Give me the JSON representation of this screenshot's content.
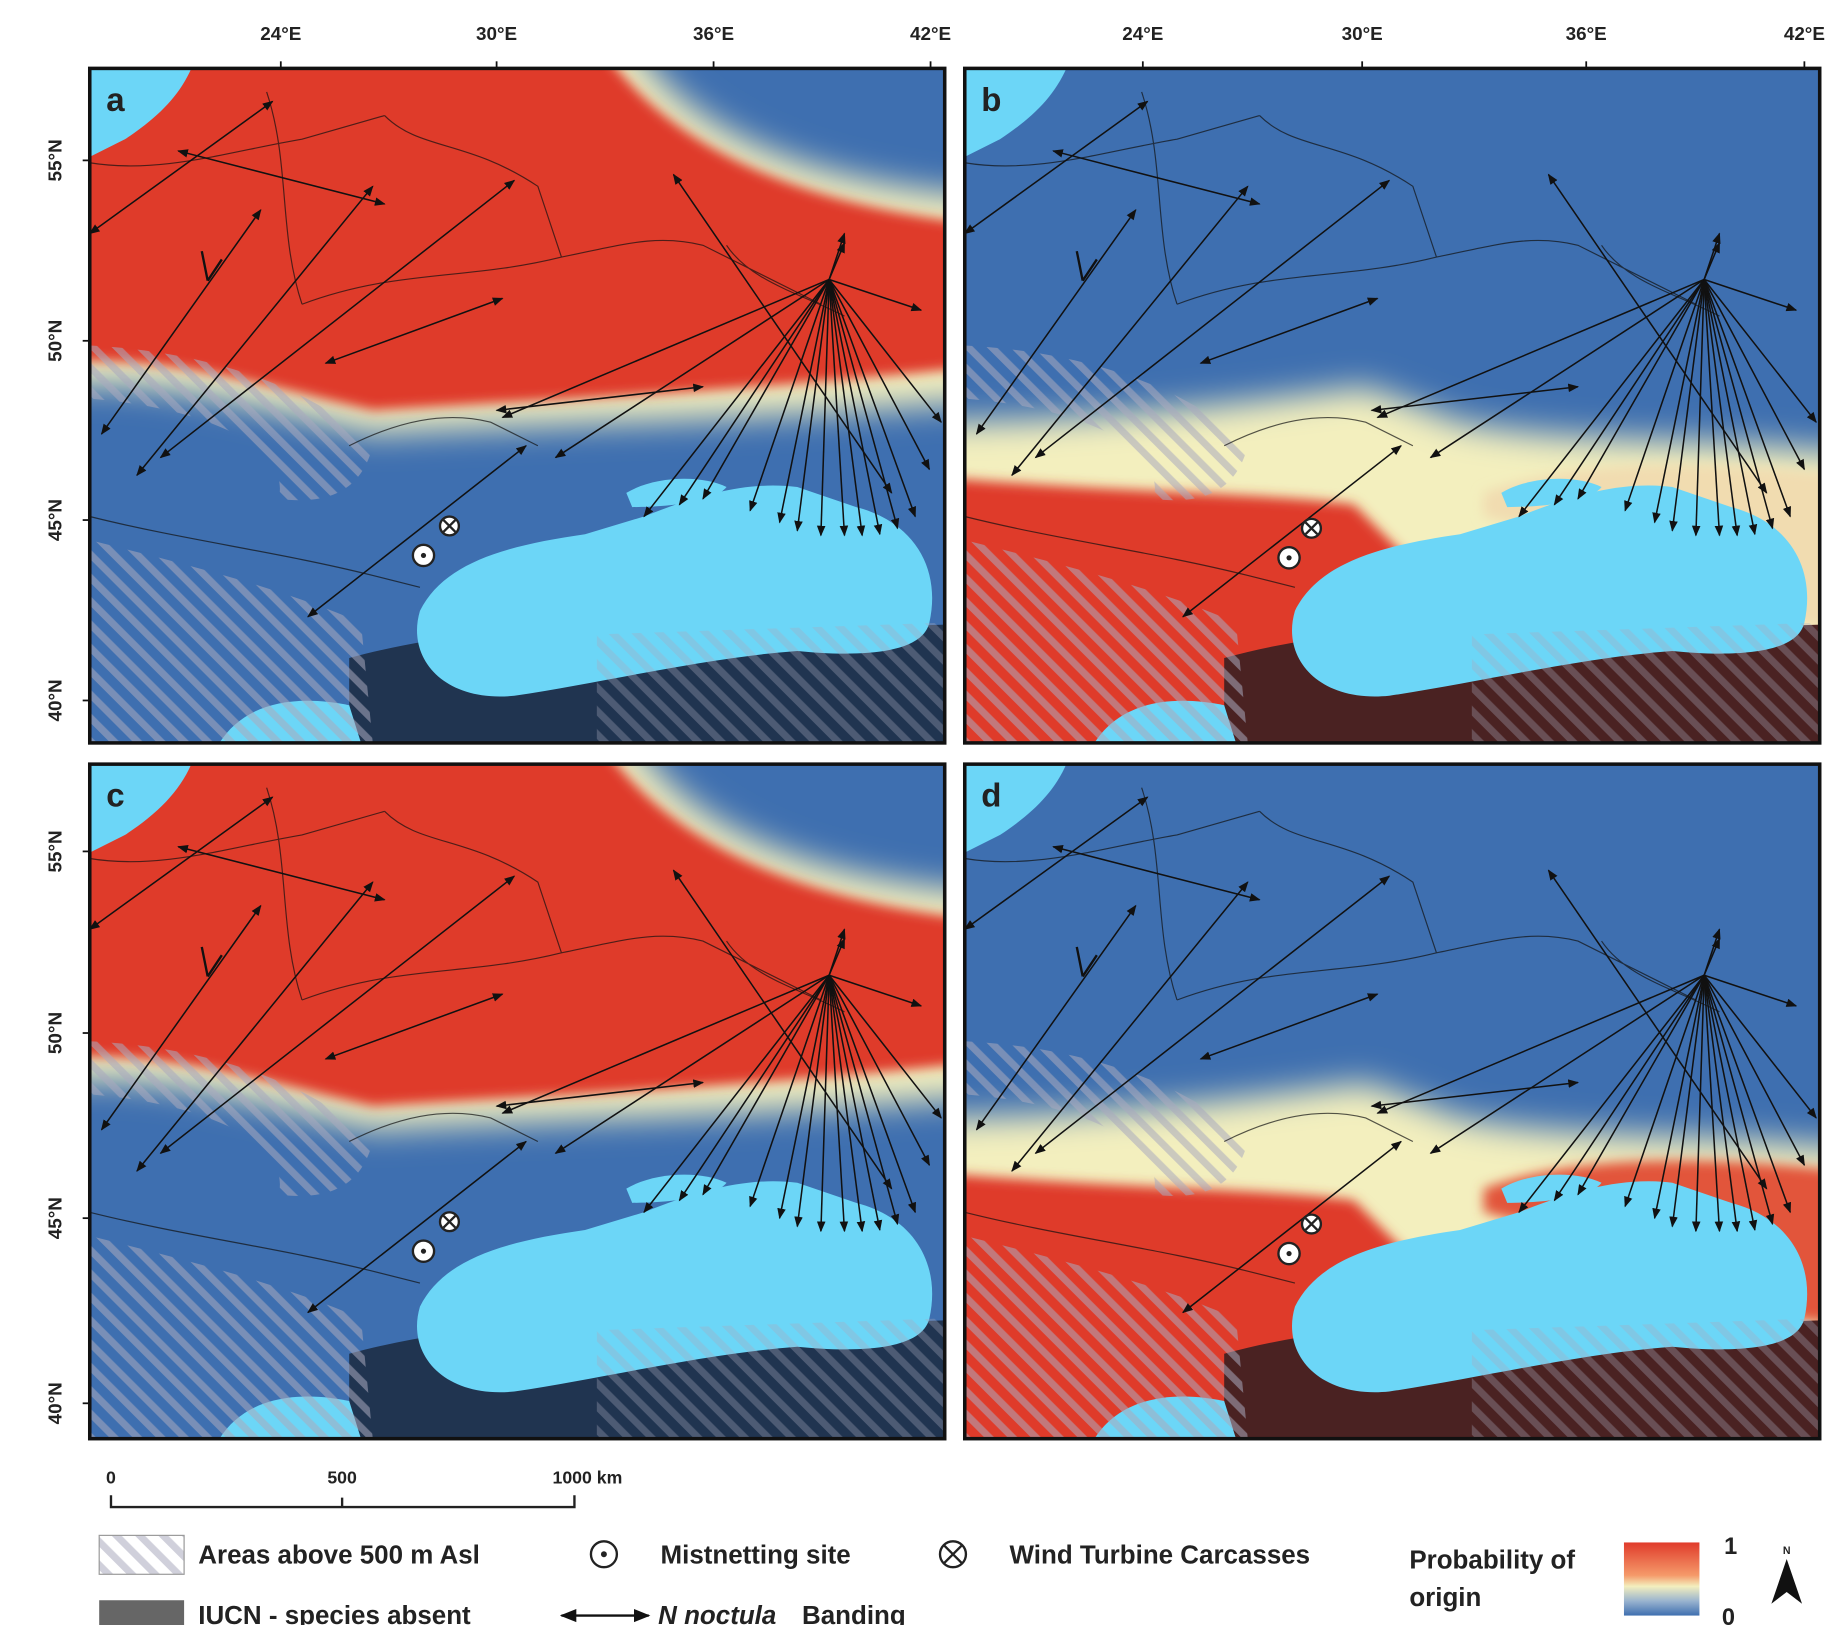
{
  "panels": [
    {
      "label": "a"
    },
    {
      "label": "b"
    },
    {
      "label": "c"
    },
    {
      "label": "d"
    }
  ],
  "longitude_ticks": [
    "24°E",
    "30°E",
    "36°E",
    "42°E"
  ],
  "latitude_ticks": [
    "55°N",
    "50°N",
    "45°N",
    "40°N"
  ],
  "scale_bar": [
    "0",
    "500",
    "1000 km"
  ],
  "legend": {
    "hatched": "Areas above 500 m Asl",
    "mistnet": "Mistnetting site",
    "turbine": "Wind Turbine Carcasses",
    "iucn": "IUCN - species absent",
    "banding_species": "N noctula",
    "banding": "Banding"
  },
  "colorbar": {
    "title_lines": [
      "Probability of",
      "origin"
    ],
    "high": "1",
    "low": "0"
  },
  "north": "N"
}
